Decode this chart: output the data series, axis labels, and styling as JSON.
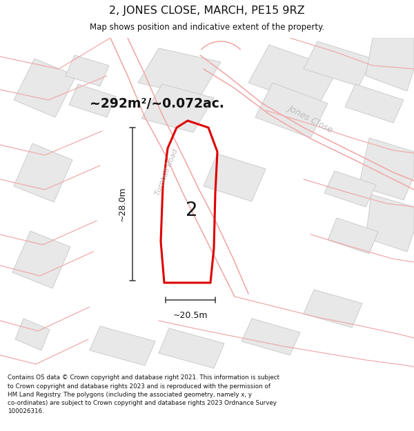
{
  "title": "2, JONES CLOSE, MARCH, PE15 9RZ",
  "subtitle": "Map shows position and indicative extent of the property.",
  "area_text": "~292m²/~0.072ac.",
  "label_2": "2",
  "dim_width": "~20.5m",
  "dim_height": "~28.0m",
  "road_label_turnbull": "Turnbull Road",
  "road_label_jones": "Jones Close",
  "footer_lines": [
    "Contains OS data © Crown copyright and database right 2021. This information is subject",
    "to Crown copyright and database rights 2023 and is reproduced with the permission of",
    "HM Land Registry. The polygons (including the associated geometry, namely x, y",
    "co-ordinates) are subject to Crown copyright and database rights 2023 Ordnance Survey",
    "100026316."
  ],
  "bg_color": "#ffffff",
  "map_bg": "#ffffff",
  "property_outline_color": "#dd0000",
  "dim_color": "#444444",
  "road_label_color": "#bbbbbb",
  "title_color": "#111111",
  "footer_color": "#111111",
  "block_fill": "#e8e8e8",
  "block_edge": "#cccccc",
  "road_pink": "#f0aaaa",
  "road_pink_dark": "#e08888"
}
